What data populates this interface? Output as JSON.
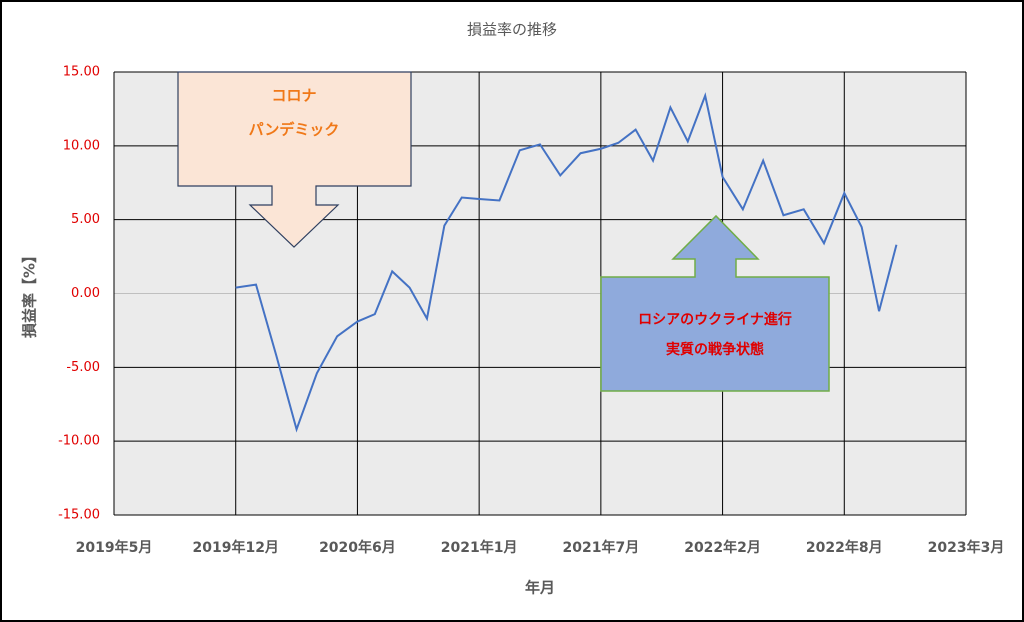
{
  "chart_data": {
    "type": "line",
    "title": "損益率の推移",
    "ylabel": "損益率【%】",
    "xlabel": "年月",
    "x": [
      "2019-12",
      "2020-01",
      "2020-02",
      "2020-03",
      "2020-04",
      "2020-05",
      "2020-06",
      "2020-07",
      "2020-08",
      "2020-09",
      "2020-10",
      "2020-11",
      "2020-12",
      "2021-01",
      "2021-02",
      "2021-03",
      "2021-04",
      "2021-05",
      "2021-06",
      "2021-07",
      "2021-08",
      "2021-09",
      "2021-10",
      "2021-11",
      "2021-12",
      "2022-01",
      "2022-02",
      "2022-03",
      "2022-04",
      "2022-05",
      "2022-06",
      "2022-07",
      "2022-08",
      "2022-09",
      "2022-10",
      "2022-11"
    ],
    "series": [
      {
        "name": "損益率",
        "color": "#4472c4",
        "values": [
          0.4,
          0.6,
          -4.2,
          -9.2,
          -5.4,
          -2.9,
          -1.9,
          -1.4,
          1.5,
          0.4,
          -1.7,
          4.6,
          6.5,
          6.4,
          6.3,
          9.7,
          10.1,
          8.0,
          9.5,
          9.8,
          10.2,
          11.1,
          9.0,
          12.6,
          10.3,
          13.4,
          7.9,
          5.7,
          9.0,
          5.3,
          5.7,
          3.4,
          6.8,
          4.5,
          -1.2,
          3.3
        ]
      }
    ],
    "xlim": [
      "2019-05",
      "2023-03"
    ],
    "xticks": [
      {
        "value": "2019-05",
        "label": "2019年5月"
      },
      {
        "value": "2019-12",
        "label": "2019年12月"
      },
      {
        "value": "2020-06",
        "label": "2020年6月"
      },
      {
        "value": "2021-01",
        "label": "2021年1月"
      },
      {
        "value": "2021-07",
        "label": "2021年7月"
      },
      {
        "value": "2022-02",
        "label": "2022年2月"
      },
      {
        "value": "2022-08",
        "label": "2022年8月"
      },
      {
        "value": "2023-03",
        "label": "2023年3月"
      }
    ],
    "ylim": [
      -15,
      15
    ],
    "yticks": [
      {
        "value": -15,
        "label": "-15.00"
      },
      {
        "value": -10,
        "label": "-10.00"
      },
      {
        "value": -5,
        "label": "-5.00"
      },
      {
        "value": 0,
        "label": "0.00"
      },
      {
        "value": 5,
        "label": "5.00"
      },
      {
        "value": 10,
        "label": "10.00"
      },
      {
        "value": 15,
        "label": "15.00"
      }
    ],
    "grid": true,
    "annotations": [
      {
        "lines": [
          "コロナ",
          "パンデミック"
        ]
      },
      {
        "lines": [
          "ロシアのウクライナ進行",
          "実質の戦争状態"
        ]
      }
    ]
  }
}
